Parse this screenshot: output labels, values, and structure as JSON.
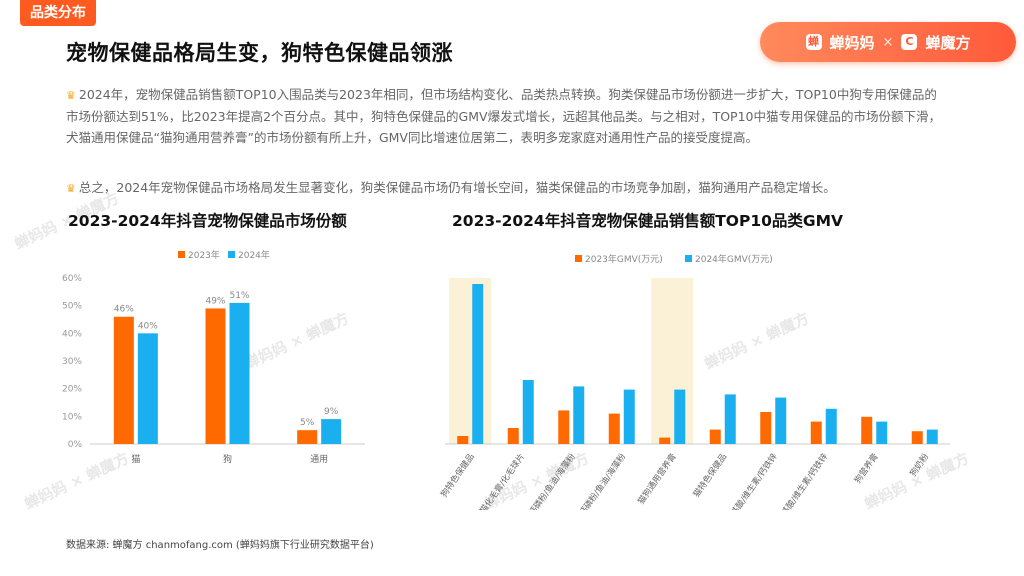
{
  "tag": "品类分布",
  "title": "宠物保健品格局生变，狗特色保健品领涨",
  "brand": {
    "left": "蝉妈妈",
    "separator": "×",
    "right": "蝉魔方"
  },
  "paragraphs": [
    "2024年，宠物保健品销售额TOP10入围品类与2023年相同，但市场结构变化、品类热点转换。狗类保健品市场份额进一步扩大，TOP10中狗专用保健品的市场份额达到51%，比2023年提高2个百分点。其中，狗特色保健品的GMV爆发式增长，远超其他品类。与之相对，TOP10中猫专用保健品的市场份额下滑，犬猫通用保健品“猫狗通用营养膏”的市场份额有所上升，GMV同比增速位居第二，表明多宠家庭对通用性产品的接受度提高。",
    "总之，2024年宠物保健品市场格局发生显著变化，狗类保健品市场仍有增长空间，猫类保健品的市场竞争加剧，猫狗通用产品稳定增长。"
  ],
  "source": "数据来源: 蝉魔方 chanmofang.com (蝉妈妈旗下行业研究数据平台)",
  "watermark": "蝉妈妈 × 蝉魔方",
  "colors": {
    "y2023": "#ff6a00",
    "y2024": "#1ab0ef",
    "highlight": "#fbf1d6"
  },
  "chart_data": [
    {
      "type": "bar",
      "title": "2023-2024年抖音宠物保健品市场份额",
      "categories": [
        "猫",
        "狗",
        "通用"
      ],
      "series": [
        {
          "name": "2023年",
          "values": [
            46,
            49,
            5
          ]
        },
        {
          "name": "2024年",
          "values": [
            40,
            51,
            9
          ]
        }
      ],
      "value_labels": {
        "2023年": [
          "46%",
          "49%",
          "5%"
        ],
        "2024年": [
          "40%",
          "51%",
          "9%"
        ]
      },
      "ylim": [
        0,
        60
      ],
      "yticks": [
        "0%",
        "10%",
        "20%",
        "30%",
        "40%",
        "50%",
        "60%"
      ],
      "legend": "top-center"
    },
    {
      "type": "bar",
      "title": "2023-2024年抖音宠物保健品销售额TOP10品类GMV",
      "categories": [
        "狗特色保健品",
        "猫化毛膏/化毛球片",
        "猫钙磷粉/鱼油/海藻粉",
        "狗钙磷粉/鱼油/海藻粉",
        "猫狗通用营养膏",
        "猫特色保健品",
        "猫氨基酸/维生素/钙铁锌",
        "狗氨基酸/维生素/钙铁锌",
        "狗营养膏",
        "狗奶粉"
      ],
      "series": [
        {
          "name": "2023年GMV(万元)",
          "values": [
            5,
            10,
            21,
            19,
            4,
            9,
            20,
            14,
            17,
            8
          ]
        },
        {
          "name": "2024年GMV(万元)",
          "values": [
            100,
            40,
            36,
            34,
            34,
            31,
            29,
            22,
            14,
            9
          ]
        }
      ],
      "highlighted": [
        "狗特色保健品",
        "猫狗通用营养膏"
      ],
      "legend": "top-center"
    }
  ]
}
